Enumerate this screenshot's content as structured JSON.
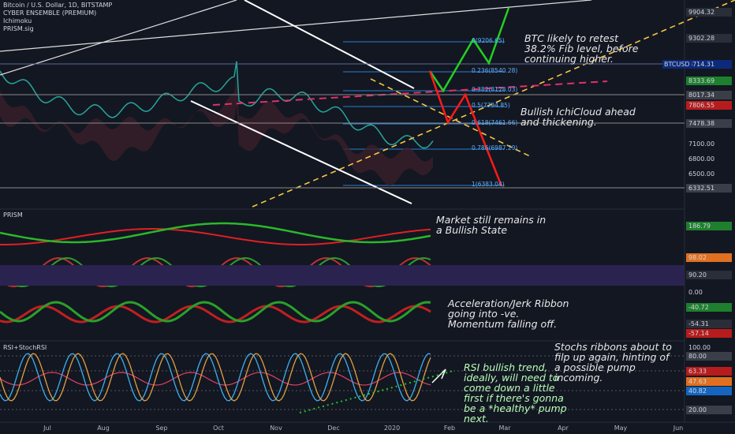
{
  "header": {
    "symbol": "Bitcoin / U.S. Dollar, 1D, BITSTAMP",
    "indicators": [
      "CYBER ENSEMBLE (PREMIUM)",
      "Ichimoku",
      "PRISM.sig"
    ]
  },
  "price_tag": "BTCUSD",
  "price_axis": [
    {
      "text": "9904.32",
      "color": "#2a2e39"
    },
    {
      "text": "9302.28",
      "color": "#2a2e39"
    },
    {
      "text": "8714.31",
      "color": "#0d2a7a"
    },
    {
      "text": "8333.69",
      "color": "#1e7f2e"
    },
    {
      "text": "8017.34",
      "color": "#3a3e49"
    },
    {
      "text": "7806.55",
      "color": "#b71c1c"
    },
    {
      "text": "7478.38",
      "color": "#3a3e49"
    },
    {
      "text": "7100.00",
      "color": "#131722"
    },
    {
      "text": "6800.00",
      "color": "#131722"
    },
    {
      "text": "6500.00",
      "color": "#131722"
    },
    {
      "text": "6332.51",
      "color": "#3a3e49"
    }
  ],
  "fib_levels": [
    "0(9206.65)",
    "0.236(8540.28)",
    "0.382(8128.03)",
    "0.5(7794.85)",
    "0.618(7461.66)",
    "0.786(6987.29)",
    "1(6383.04)"
  ],
  "annotations": [
    "BTC likely to retest 38.2% Fib level, before continuing higher.",
    "Bullish IchiCloud ahead and thickening.",
    "Market still remains in a Bullish State",
    "Acceleration/Jerk Ribbon going into -ve. Momentum falling off.",
    "Stochs ribbons about to filp up again, hinting of a possible pump incoming.",
    "RSI bullish trend, ideally, will need to come down a little first if there's gonna be a *healthy* pump next."
  ],
  "panels": {
    "prism": {
      "title": "PRISM",
      "axis": [
        {
          "text": "186.79",
          "color": "#1e7f2e"
        },
        {
          "text": "98.02",
          "color": "#e07020"
        },
        {
          "text": "90.20",
          "color": "#2a2e39"
        },
        {
          "text": "0.00",
          "color": "#131722"
        },
        {
          "text": "-40.72",
          "color": "#1e7f2e"
        },
        {
          "text": "-54.31",
          "color": "#2a2e39"
        },
        {
          "text": "-57.14",
          "color": "#b71c1c"
        }
      ]
    },
    "rsi": {
      "title": "RSI+StochRSI",
      "axis": [
        {
          "text": "100.00",
          "color": "#131722"
        },
        {
          "text": "80.00",
          "color": "#3a3e49"
        },
        {
          "text": "63.33",
          "color": "#b71c1c"
        },
        {
          "text": "47.63",
          "color": "#e07020"
        },
        {
          "text": "40.82",
          "color": "#1565c0"
        },
        {
          "text": "20.00",
          "color": "#3a3e49"
        }
      ]
    }
  },
  "time_axis": [
    "Jul",
    "Aug",
    "Sep",
    "Oct",
    "Nov",
    "Dec",
    "2020",
    "Feb",
    "Mar",
    "Apr",
    "May",
    "Jun"
  ]
}
